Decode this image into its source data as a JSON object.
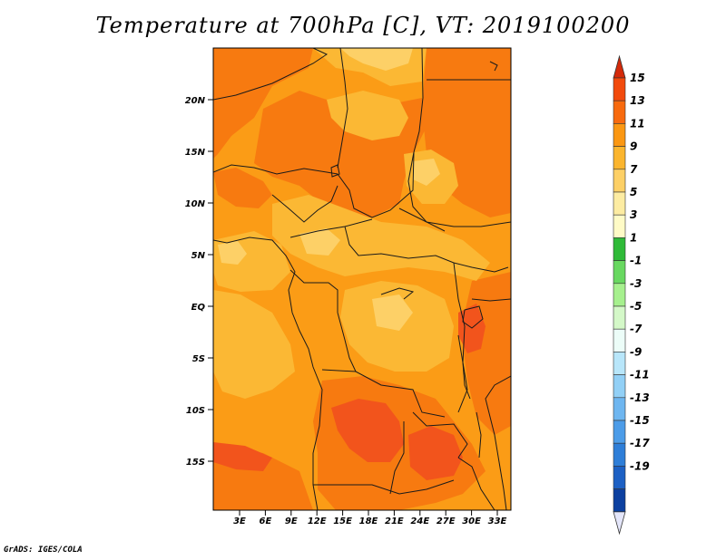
{
  "title": "Temperature at 700hPa [C], VT: 2019100200",
  "credit": "GrADS: IGES/COLA",
  "map": {
    "lon_labels": [
      "3E",
      "6E",
      "9E",
      "12E",
      "15E",
      "18E",
      "21E",
      "24E",
      "27E",
      "30E",
      "33E"
    ],
    "lat_labels": [
      "20N",
      "15N",
      "10N",
      "5N",
      "EQ",
      "5S",
      "10S",
      "15S"
    ]
  },
  "colorbar": {
    "labels": [
      "15",
      "13",
      "11",
      "9",
      "7",
      "5",
      "3",
      "1",
      "-1",
      "-3",
      "-5",
      "-7",
      "-9",
      "-11",
      "-13",
      "-15",
      "-17",
      "-19"
    ],
    "colors": {
      "top_arrow": "#d42a0a",
      "bins": [
        "#f24a0c",
        "#f86a0e",
        "#fb9712",
        "#fbb52e",
        "#fdd066",
        "#fdeca2",
        "#fffbc6",
        "#2fba38",
        "#68d860",
        "#a6f08e",
        "#d4f8c8",
        "#ecfdf8",
        "#b8e6fa",
        "#92d0f6",
        "#6eb6f0",
        "#4c9ce8",
        "#2e7ed8",
        "#1c60c4",
        "#0c40a0",
        "#082868"
      ],
      "bottom_arrow": "#e4e6fa"
    }
  },
  "colors": {
    "field_base": "#fb9c16",
    "field_warm": "#f77a10",
    "field_hot": "#f2541c",
    "field_cool": "#fbb834",
    "field_pale": "#fdd067",
    "border": "#1a1a1a"
  }
}
